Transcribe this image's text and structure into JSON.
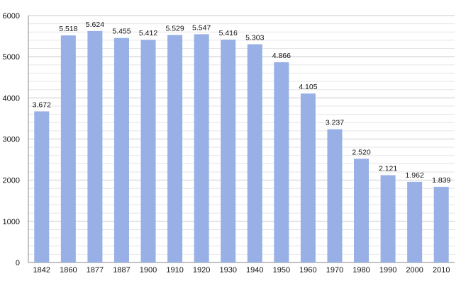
{
  "chart_data": {
    "type": "bar",
    "title": "",
    "xlabel": "",
    "ylabel": "",
    "categories": [
      "1842",
      "1860",
      "1877",
      "1887",
      "1900",
      "1910",
      "1920",
      "1930",
      "1940",
      "1950",
      "1960",
      "1970",
      "1980",
      "1990",
      "2000",
      "2010"
    ],
    "values": [
      3672,
      5518,
      5624,
      5455,
      5412,
      5529,
      5547,
      5416,
      5303,
      4866,
      4105,
      3237,
      2520,
      2121,
      1962,
      1839
    ],
    "value_labels": [
      "3.672",
      "5.518",
      "5.624",
      "5.455",
      "5.412",
      "5.529",
      "5.547",
      "5.416",
      "5.303",
      "4.866",
      "4.105",
      "3.237",
      "2.520",
      "2.121",
      "1.962",
      "1.839"
    ],
    "ylim": [
      0,
      6000
    ],
    "yticks": [
      0,
      1000,
      2000,
      3000,
      4000,
      5000,
      6000
    ],
    "grid": true,
    "bar_color": "#98b0e6",
    "grid_major_color": "#c8c8c8",
    "grid_minor_color": "#e6e6e6"
  }
}
